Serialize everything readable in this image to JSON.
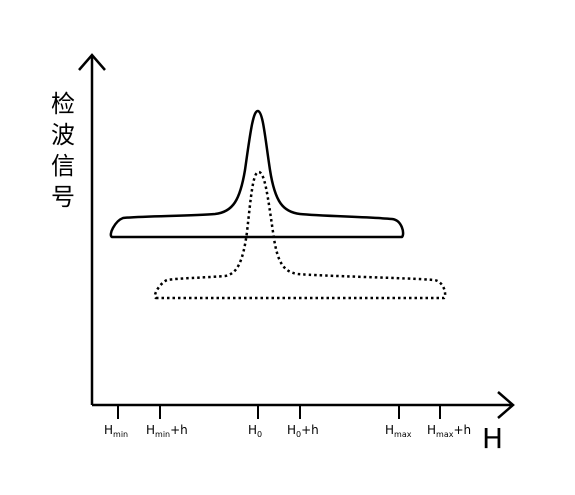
{
  "diagram": {
    "y_axis_label": [
      "检",
      "波",
      "信",
      "号"
    ],
    "x_axis_label": "H",
    "ticks": [
      {
        "main": "H",
        "sub": "min",
        "suffix": ""
      },
      {
        "main": "H",
        "sub": "min",
        "suffix": "+h"
      },
      {
        "main": "H",
        "sub": "0",
        "suffix": ""
      },
      {
        "main": "H",
        "sub": "0",
        "suffix": "+h"
      },
      {
        "main": "H",
        "sub": "max",
        "suffix": ""
      },
      {
        "main": "H",
        "sub": "max",
        "suffix": "+h"
      }
    ],
    "curves": [
      {
        "name": "solid-resonance-curve",
        "line_style": "solid",
        "peak_tick": "H0"
      },
      {
        "name": "dotted-resonance-curve",
        "line_style": "dotted",
        "peak_tick": "H0"
      }
    ],
    "colors": {
      "ink": "#000000",
      "background": "#ffffff"
    }
  }
}
